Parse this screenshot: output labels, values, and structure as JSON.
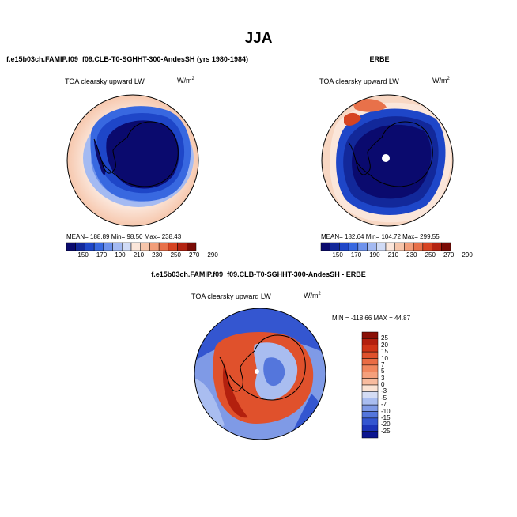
{
  "page": {
    "season": "JJA"
  },
  "colors": {
    "ocean_warm": "#f6d5c2",
    "ocean_light": "#fbe9de",
    "ice_blue": "#3a62d8",
    "ice_deep": "#0c0c78",
    "diff_red": "#d73a1c",
    "diff_dark_red": "#9b1a0c",
    "diff_blue": "#1d39c8",
    "coastline": "#000000"
  },
  "chart_data": [
    {
      "type": "heatmap",
      "projection": "south-polar-stereographic",
      "title": "f.e15b03ch.FAMIP.f09_f09.CLB-T0-SGHHT-300-AndesSH (yrs 1980-1984)",
      "variable": "TOA clearsky upward LW",
      "units": "W/m",
      "units_exp": "2",
      "stats": {
        "mean": "188.89",
        "min": "98.50",
        "max": "238.43"
      },
      "stats_text": "MEAN= 188.89   Min=  98.50   Max= 238.43",
      "legend_position": "bottom",
      "colorbar_ticks": [
        "150",
        "170",
        "190",
        "210",
        "230",
        "250",
        "270",
        "290"
      ],
      "colorbar_colors": [
        "#0a0a6e",
        "#12289a",
        "#1e46c8",
        "#3868e0",
        "#6e92ec",
        "#a4baf2",
        "#d0dbf6",
        "#fbe6da",
        "#f6c5aa",
        "#f29e7a",
        "#e8714a",
        "#d64422",
        "#b32412",
        "#7a0c06"
      ]
    },
    {
      "type": "heatmap",
      "projection": "south-polar-stereographic",
      "title": "ERBE",
      "variable": "TOA clearsky upward LW",
      "units": "W/m",
      "units_exp": "2",
      "stats": {
        "mean": "182.64",
        "min": "104.72",
        "max": "299.55"
      },
      "stats_text": "MEAN= 182.64   Min= 104.72   Max= 299.55",
      "legend_position": "bottom",
      "colorbar_ticks": [
        "150",
        "170",
        "190",
        "210",
        "230",
        "250",
        "270",
        "290"
      ],
      "colorbar_colors": [
        "#0a0a6e",
        "#12289a",
        "#1e46c8",
        "#3868e0",
        "#6e92ec",
        "#a4baf2",
        "#d0dbf6",
        "#fbe6da",
        "#f6c5aa",
        "#f29e7a",
        "#e8714a",
        "#d64422",
        "#b32412",
        "#7a0c06"
      ]
    },
    {
      "type": "heatmap",
      "projection": "south-polar-stereographic",
      "title": "f.e15b03ch.FAMIP.f09_f09.CLB-T0-SGHHT-300-AndesSH - ERBE",
      "variable": "TOA clearsky upward LW",
      "units": "W/m",
      "units_exp": "2",
      "stats": {
        "min": "-118.66",
        "max": "44.87"
      },
      "stats_text": "MIN = -118.66 MAX =  44.87",
      "legend_position": "right",
      "colorbar_ticks": [
        "25",
        "20",
        "15",
        "10",
        "7",
        "5",
        "3",
        "0",
        "-3",
        "-5",
        "-7",
        "-10",
        "-15",
        "-20",
        "-25"
      ],
      "colorbar_colors": [
        "#8a1006",
        "#b3200e",
        "#cf3416",
        "#e0512c",
        "#ea6c44",
        "#f1875e",
        "#f5a07c",
        "#f8bc9e",
        "#fbe3d2",
        "#d4dcf4",
        "#a9bdf0",
        "#7f9ae6",
        "#5476dc",
        "#3456d0",
        "#1c34b8",
        "#0c1690"
      ]
    }
  ]
}
